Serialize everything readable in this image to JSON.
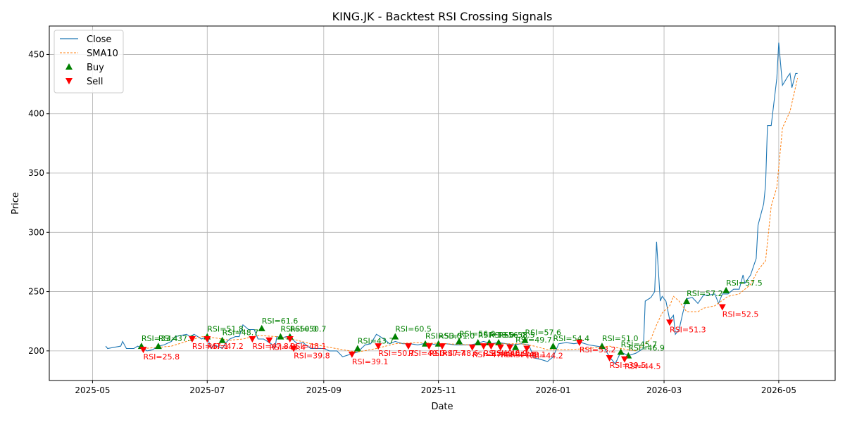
{
  "chart_data": {
    "type": "line",
    "title": "KING.JK - Backtest RSI Crossing Signals",
    "xlabel": "Date",
    "ylabel": "Price",
    "xlim": [
      "2025-04-08",
      "2026-05-31"
    ],
    "ylim": [
      175,
      474
    ],
    "grid": true,
    "legend_position": "top-left",
    "x_ticks": [
      {
        "date": "2025-05-01",
        "label": "2025-05"
      },
      {
        "date": "2025-07-01",
        "label": "2025-07"
      },
      {
        "date": "2025-09-01",
        "label": "2025-09"
      },
      {
        "date": "2025-11-01",
        "label": "2025-11"
      },
      {
        "date": "2026-01-01",
        "label": "2026-01"
      },
      {
        "date": "2026-03-01",
        "label": "2026-03"
      },
      {
        "date": "2026-05-01",
        "label": "2026-05"
      }
    ],
    "y_ticks": [
      200,
      250,
      300,
      350,
      400,
      450
    ],
    "legend": [
      {
        "label": "Close",
        "kind": "line",
        "color": "#1f77b4"
      },
      {
        "label": "SMA10",
        "kind": "dashed",
        "color": "#ff7f0e"
      },
      {
        "label": "Buy",
        "kind": "triangle-up",
        "color": "#008000"
      },
      {
        "label": "Sell",
        "kind": "triangle-down",
        "color": "#ff0000"
      }
    ],
    "series": [
      {
        "name": "Close",
        "color": "#1f77b4",
        "style": "solid",
        "points": [
          [
            "2025-05-08",
            204
          ],
          [
            "2025-05-09",
            202
          ],
          [
            "2025-05-16",
            204
          ],
          [
            "2025-05-17",
            208
          ],
          [
            "2025-05-19",
            202
          ],
          [
            "2025-05-23",
            202
          ],
          [
            "2025-05-25",
            204
          ],
          [
            "2025-05-28",
            202
          ],
          [
            "2025-05-30",
            200
          ],
          [
            "2025-06-02",
            201
          ],
          [
            "2025-06-05",
            204
          ],
          [
            "2025-06-08",
            205
          ],
          [
            "2025-06-12",
            208
          ],
          [
            "2025-06-14",
            212
          ],
          [
            "2025-06-17",
            213
          ],
          [
            "2025-06-20",
            214
          ],
          [
            "2025-06-22",
            212
          ],
          [
            "2025-06-24",
            214
          ],
          [
            "2025-06-26",
            212
          ],
          [
            "2025-06-28",
            210
          ],
          [
            "2025-07-01",
            212
          ],
          [
            "2025-07-03",
            202
          ],
          [
            "2025-07-05",
            205
          ],
          [
            "2025-07-09",
            202
          ],
          [
            "2025-07-11",
            207
          ],
          [
            "2025-07-13",
            210
          ],
          [
            "2025-07-16",
            212
          ],
          [
            "2025-07-18",
            212
          ],
          [
            "2025-07-20",
            222
          ],
          [
            "2025-07-23",
            218
          ],
          [
            "2025-07-26",
            218
          ],
          [
            "2025-07-28",
            210
          ],
          [
            "2025-07-31",
            210
          ],
          [
            "2025-08-04",
            206
          ],
          [
            "2025-08-06",
            202
          ],
          [
            "2025-08-07",
            212
          ],
          [
            "2025-08-10",
            211
          ],
          [
            "2025-08-12",
            212
          ],
          [
            "2025-08-15",
            210
          ],
          [
            "2025-08-18",
            206
          ],
          [
            "2025-08-21",
            207
          ],
          [
            "2025-08-25",
            202
          ],
          [
            "2025-09-01",
            202
          ],
          [
            "2025-09-04",
            200
          ],
          [
            "2025-09-08",
            200
          ],
          [
            "2025-09-11",
            195
          ],
          [
            "2025-09-15",
            197
          ],
          [
            "2025-09-19",
            199
          ],
          [
            "2025-09-23",
            205
          ],
          [
            "2025-09-26",
            206
          ],
          [
            "2025-09-29",
            214
          ],
          [
            "2025-10-03",
            210
          ],
          [
            "2025-10-06",
            206
          ],
          [
            "2025-10-09",
            208
          ],
          [
            "2025-10-13",
            206
          ],
          [
            "2025-10-17",
            206
          ],
          [
            "2025-10-21",
            205
          ],
          [
            "2025-10-24",
            206
          ],
          [
            "2025-10-28",
            206
          ],
          [
            "2025-10-31",
            205
          ],
          [
            "2025-11-05",
            206
          ],
          [
            "2025-11-10",
            205
          ],
          [
            "2025-11-14",
            205
          ],
          [
            "2025-11-18",
            205
          ],
          [
            "2025-11-21",
            206
          ],
          [
            "2025-11-25",
            208
          ],
          [
            "2025-11-29",
            206
          ],
          [
            "2025-12-03",
            207
          ],
          [
            "2025-12-07",
            206
          ],
          [
            "2025-12-11",
            205
          ],
          [
            "2025-12-15",
            206
          ],
          [
            "2025-12-19",
            205
          ],
          [
            "2025-12-22",
            194
          ],
          [
            "2025-12-25",
            193
          ],
          [
            "2025-12-29",
            191
          ],
          [
            "2026-01-01",
            195
          ],
          [
            "2026-01-04",
            206
          ],
          [
            "2026-01-08",
            207
          ],
          [
            "2026-01-12",
            206
          ],
          [
            "2026-01-16",
            207
          ],
          [
            "2026-01-20",
            205
          ],
          [
            "2026-01-24",
            204
          ],
          [
            "2026-01-28",
            203
          ],
          [
            "2026-01-31",
            195
          ],
          [
            "2026-02-03",
            189
          ],
          [
            "2026-02-06",
            199
          ],
          [
            "2026-02-10",
            196
          ],
          [
            "2026-02-14",
            198
          ],
          [
            "2026-02-18",
            202
          ],
          [
            "2026-02-19",
            242
          ],
          [
            "2026-02-22",
            245
          ],
          [
            "2026-02-24",
            250
          ],
          [
            "2026-02-25",
            292
          ],
          [
            "2026-02-27",
            242
          ],
          [
            "2026-02-28",
            246
          ],
          [
            "2026-03-02",
            242
          ],
          [
            "2026-03-04",
            226
          ],
          [
            "2026-03-06",
            230
          ],
          [
            "2026-03-07",
            214
          ],
          [
            "2026-03-09",
            218
          ],
          [
            "2026-03-11",
            232
          ],
          [
            "2026-03-13",
            244
          ],
          [
            "2026-03-16",
            245
          ],
          [
            "2026-03-19",
            240
          ],
          [
            "2026-03-22",
            247
          ],
          [
            "2026-03-25",
            247
          ],
          [
            "2026-03-28",
            248
          ],
          [
            "2026-03-30",
            240
          ],
          [
            "2026-04-01",
            248
          ],
          [
            "2026-04-04",
            248
          ],
          [
            "2026-04-07",
            252
          ],
          [
            "2026-04-10",
            252
          ],
          [
            "2026-04-12",
            264
          ],
          [
            "2026-04-13",
            257
          ],
          [
            "2026-04-16",
            264
          ],
          [
            "2026-04-19",
            278
          ],
          [
            "2026-04-20",
            306
          ],
          [
            "2026-04-23",
            324
          ],
          [
            "2026-04-24",
            340
          ],
          [
            "2026-04-25",
            390
          ],
          [
            "2026-04-27",
            390
          ],
          [
            "2026-04-30",
            430
          ],
          [
            "2026-05-01",
            460
          ],
          [
            "2026-05-03",
            424
          ],
          [
            "2026-05-06",
            432
          ],
          [
            "2026-05-07",
            434
          ],
          [
            "2026-05-08",
            422
          ],
          [
            "2026-05-10",
            434
          ],
          [
            "2026-05-11",
            434
          ]
        ]
      },
      {
        "name": "SMA10",
        "color": "#ff7f0e",
        "style": "dashed",
        "points": [
          [
            "2025-05-28",
            202
          ],
          [
            "2025-06-05",
            203
          ],
          [
            "2025-06-12",
            204
          ],
          [
            "2025-06-20",
            208
          ],
          [
            "2025-06-28",
            212
          ],
          [
            "2025-07-05",
            211
          ],
          [
            "2025-07-13",
            209
          ],
          [
            "2025-07-20",
            210
          ],
          [
            "2025-07-28",
            213
          ],
          [
            "2025-08-07",
            212
          ],
          [
            "2025-08-15",
            210
          ],
          [
            "2025-08-25",
            206
          ],
          [
            "2025-09-04",
            203
          ],
          [
            "2025-09-11",
            201
          ],
          [
            "2025-09-19",
            199
          ],
          [
            "2025-09-29",
            202
          ],
          [
            "2025-10-09",
            206
          ],
          [
            "2025-10-21",
            207
          ],
          [
            "2025-11-05",
            206
          ],
          [
            "2025-11-18",
            205
          ],
          [
            "2025-12-03",
            206
          ],
          [
            "2025-12-15",
            206
          ],
          [
            "2025-12-22",
            204
          ],
          [
            "2025-12-29",
            201
          ],
          [
            "2026-01-08",
            201
          ],
          [
            "2026-01-20",
            202
          ],
          [
            "2026-01-31",
            204
          ],
          [
            "2026-02-06",
            202
          ],
          [
            "2026-02-14",
            200
          ],
          [
            "2026-02-22",
            210
          ],
          [
            "2026-02-25",
            222
          ],
          [
            "2026-02-28",
            232
          ],
          [
            "2026-03-04",
            238
          ],
          [
            "2026-03-06",
            246
          ],
          [
            "2026-03-09",
            242
          ],
          [
            "2026-03-13",
            233
          ],
          [
            "2026-03-19",
            233
          ],
          [
            "2026-03-22",
            236
          ],
          [
            "2026-03-28",
            238
          ],
          [
            "2026-04-04",
            246
          ],
          [
            "2026-04-10",
            248
          ],
          [
            "2026-04-16",
            256
          ],
          [
            "2026-04-20",
            268
          ],
          [
            "2026-04-24",
            276
          ],
          [
            "2026-04-27",
            322
          ],
          [
            "2026-04-30",
            338
          ],
          [
            "2026-05-03",
            388
          ],
          [
            "2026-05-07",
            402
          ],
          [
            "2026-05-11",
            430
          ]
        ]
      }
    ],
    "buy_signals": [
      {
        "date": "2025-05-27",
        "price": 204,
        "label": "RSI=33.4"
      },
      {
        "date": "2025-06-05",
        "price": 204,
        "label": "RSI=37.5"
      },
      {
        "date": "2025-07-01",
        "price": 212,
        "label": "RSI=51.8"
      },
      {
        "date": "2025-07-09",
        "price": 209,
        "label": "RSI=48.7"
      },
      {
        "date": "2025-07-30",
        "price": 219,
        "label": "RSI=61.6"
      },
      {
        "date": "2025-08-09",
        "price": 212,
        "label": "RSI=50.0"
      },
      {
        "date": "2025-08-14",
        "price": 212,
        "label": "RSI=50.7"
      },
      {
        "date": "2025-09-19",
        "price": 202,
        "label": "RSI=43.7"
      },
      {
        "date": "2025-10-09",
        "price": 212,
        "label": "RSI=60.5"
      },
      {
        "date": "2025-10-25",
        "price": 206,
        "label": "RSI=53.0"
      },
      {
        "date": "2025-11-01",
        "price": 206,
        "label": "RSI=51.0"
      },
      {
        "date": "2025-11-12",
        "price": 208,
        "label": "RSI=56.0"
      },
      {
        "date": "2025-11-22",
        "price": 207,
        "label": "RSI=53.0"
      },
      {
        "date": "2025-11-28",
        "price": 207,
        "label": "RSI=56.0"
      },
      {
        "date": "2025-12-03",
        "price": 207,
        "label": "RSI=58.5"
      },
      {
        "date": "2025-12-12",
        "price": 203,
        "label": "RSI=49.7"
      },
      {
        "date": "2025-12-17",
        "price": 209,
        "label": "RSI=57.6"
      },
      {
        "date": "2026-01-01",
        "price": 204,
        "label": "RSI=54.4"
      },
      {
        "date": "2026-01-27",
        "price": 204,
        "label": "RSI=51.0"
      },
      {
        "date": "2026-02-06",
        "price": 199,
        "label": "RSI=45.7"
      },
      {
        "date": "2026-02-10",
        "price": 196,
        "label": "RSI=46.9"
      },
      {
        "date": "2026-03-13",
        "price": 242,
        "label": "RSI=57.2"
      },
      {
        "date": "2026-04-03",
        "price": 251,
        "label": "RSI=57.5"
      }
    ],
    "sell_signals": [
      {
        "date": "2025-05-28",
        "price": 201,
        "label": "RSI=25.8"
      },
      {
        "date": "2025-06-23",
        "price": 210,
        "label": "RSI=47.1"
      },
      {
        "date": "2025-07-01",
        "price": 210,
        "label": "RSI=47.2"
      },
      {
        "date": "2025-07-25",
        "price": 210,
        "label": "RSI=47.8"
      },
      {
        "date": "2025-08-03",
        "price": 209,
        "label": "RSI=45.4"
      },
      {
        "date": "2025-08-14",
        "price": 210,
        "label": "RSI=48.1"
      },
      {
        "date": "2025-08-16",
        "price": 202,
        "label": "RSI=39.8"
      },
      {
        "date": "2025-09-16",
        "price": 197,
        "label": "RSI=39.1"
      },
      {
        "date": "2025-09-30",
        "price": 204,
        "label": "RSI=50.7"
      },
      {
        "date": "2025-10-16",
        "price": 204,
        "label": "RSI=49.0"
      },
      {
        "date": "2025-10-27",
        "price": 204,
        "label": "RSI=47.7"
      },
      {
        "date": "2025-11-03",
        "price": 204,
        "label": "RSI=48.6"
      },
      {
        "date": "2025-11-19",
        "price": 203,
        "label": "RSI=47.4"
      },
      {
        "date": "2025-11-25",
        "price": 204,
        "label": "RSI=49.0"
      },
      {
        "date": "2025-11-29",
        "price": 204,
        "label": "RSI=46.9"
      },
      {
        "date": "2025-12-04",
        "price": 203,
        "label": "RSI=47.5"
      },
      {
        "date": "2025-12-09",
        "price": 203,
        "label": "RSI=48.1"
      },
      {
        "date": "2025-12-18",
        "price": 202,
        "label": "RSI=44.2"
      },
      {
        "date": "2026-01-15",
        "price": 207,
        "label": "RSI=53.2"
      },
      {
        "date": "2026-01-31",
        "price": 194,
        "label": "RSI=39.5"
      },
      {
        "date": "2026-02-08",
        "price": 193,
        "label": "RSI=44.5"
      },
      {
        "date": "2026-03-04",
        "price": 224,
        "label": "RSI=51.3"
      },
      {
        "date": "2026-04-01",
        "price": 237,
        "label": "RSI=52.5"
      }
    ]
  }
}
